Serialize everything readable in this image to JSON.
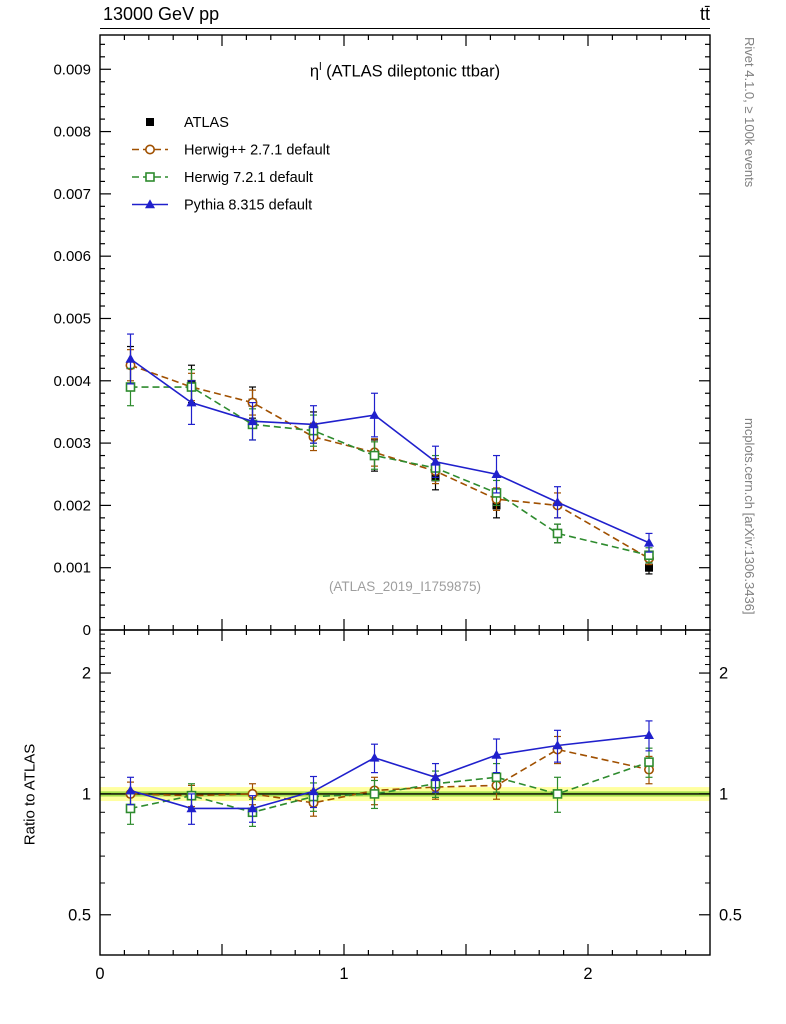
{
  "header": {
    "left": "13000 GeV pp",
    "right": "tt̄"
  },
  "title": {
    "eta": "η",
    "sup": "l",
    "rest": " (ATLAS dileptonic ttbar)"
  },
  "watermark": "(ATLAS_2019_I1759875)",
  "right_labels": {
    "top": "Rivet 4.1.0, ≥ 100k events",
    "bottom": "mcplots.cern.ch [arXiv:1306.3436]"
  },
  "ratio_ylabel": "Ratio to ATLAS",
  "chart_data": {
    "type": "line",
    "title": "η^l (ATLAS dileptonic ttbar)",
    "xlabel": "",
    "ylabel": "",
    "xlim": [
      0,
      2.5
    ],
    "ylim": [
      0,
      0.00955
    ],
    "xticks": [
      0,
      1,
      2
    ],
    "yticks": [
      0.001,
      0.002,
      0.003,
      0.004,
      0.005,
      0.006,
      0.007,
      0.008,
      0.009
    ],
    "ratio_ticks": [
      0.5,
      1,
      2
    ],
    "ratio_minor_ticks": [
      0.6,
      0.7,
      0.8,
      0.9,
      1.1,
      1.2,
      1.3,
      1.4,
      1.5,
      1.6,
      1.7,
      1.8,
      1.9,
      2.1,
      2.2,
      2.3,
      2.4,
      2.5
    ],
    "ratio_ylim": [
      0.397,
      2.56
    ],
    "x": [
      0.125,
      0.375,
      0.625,
      0.875,
      1.125,
      1.375,
      1.625,
      1.875,
      2.25
    ],
    "band": {
      "outer": [
        0.96,
        1.04
      ],
      "outer_color": "#ffffa0",
      "inner": [
        0.985,
        1.015
      ],
      "inner_color": "#a6e04e"
    },
    "series": [
      {
        "name": "ATLAS",
        "color": "#000000",
        "marker": "square_filled",
        "line": "none",
        "y": [
          0.00425,
          0.00395,
          0.00365,
          0.00325,
          0.0028,
          0.00245,
          0.002,
          0.00155,
          0.001
        ],
        "yerr": [
          0.0003,
          0.0003,
          0.00025,
          0.00025,
          0.00025,
          0.0002,
          0.0002,
          0.00015,
          0.0001
        ],
        "ratio": null,
        "ratio_err": null
      },
      {
        "name": "Herwig++ 2.7.1 default",
        "color": "#a05000",
        "marker": "circle_open",
        "line": "dashed",
        "y": [
          0.00425,
          0.0039,
          0.00365,
          0.0031,
          0.00285,
          0.00255,
          0.0021,
          0.002,
          0.00115
        ],
        "yerr": [
          0.00025,
          0.00022,
          0.0002,
          0.00022,
          0.00022,
          0.0002,
          0.00018,
          0.0002,
          0.0001
        ],
        "ratio": [
          1.0,
          0.99,
          1.0,
          0.95,
          1.02,
          1.04,
          1.05,
          1.29,
          1.15
        ],
        "ratio_err": [
          0.07,
          0.06,
          0.06,
          0.07,
          0.08,
          0.07,
          0.08,
          0.1,
          0.09
        ]
      },
      {
        "name": "Herwig 7.2.1 default",
        "color": "#2e8b2e",
        "marker": "square_open",
        "line": "dashed",
        "y": [
          0.0039,
          0.0039,
          0.0033,
          0.0032,
          0.0028,
          0.0026,
          0.0022,
          0.00155,
          0.0012
        ],
        "yerr": [
          0.0003,
          0.00028,
          0.00025,
          0.00025,
          0.00022,
          0.0002,
          0.0002,
          0.00015,
          0.00012
        ],
        "ratio": [
          0.92,
          0.99,
          0.9,
          0.985,
          1.0,
          1.06,
          1.1,
          1.0,
          1.2
        ],
        "ratio_err": [
          0.08,
          0.07,
          0.07,
          0.08,
          0.08,
          0.08,
          0.09,
          0.1,
          0.1
        ]
      },
      {
        "name": "Pythia 8.315 default",
        "color": "#2020cc",
        "marker": "triangle_filled",
        "line": "solid",
        "y": [
          0.00435,
          0.00365,
          0.00335,
          0.0033,
          0.00345,
          0.0027,
          0.0025,
          0.00205,
          0.0014
        ],
        "yerr": [
          0.0004,
          0.00035,
          0.0003,
          0.0003,
          0.00035,
          0.00025,
          0.0003,
          0.00025,
          0.00015
        ],
        "ratio": [
          1.02,
          0.92,
          0.92,
          1.015,
          1.23,
          1.1,
          1.25,
          1.32,
          1.4
        ],
        "ratio_err": [
          0.08,
          0.08,
          0.07,
          0.09,
          0.1,
          0.09,
          0.12,
          0.12,
          0.12
        ]
      }
    ]
  }
}
